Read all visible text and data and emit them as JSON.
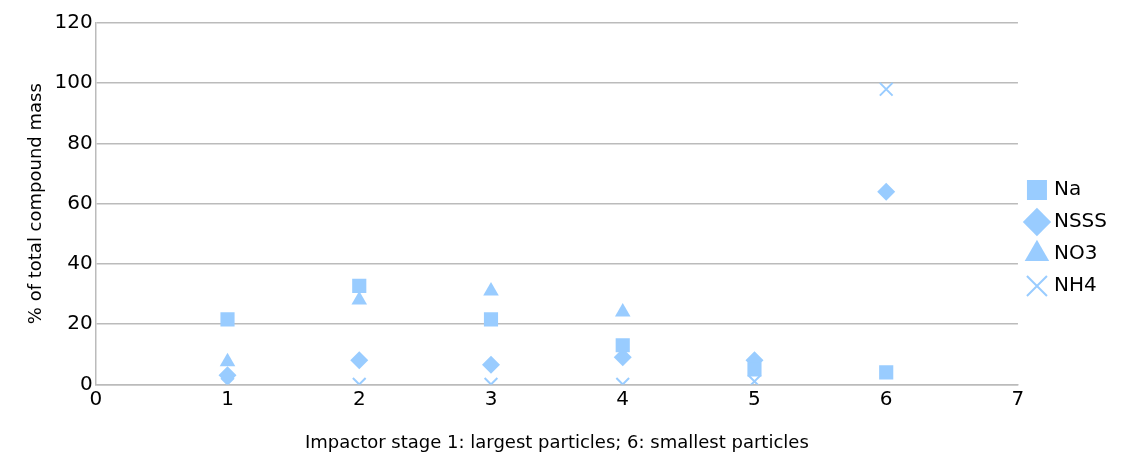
{
  "chart_data": {
    "type": "scatter",
    "xlabel": "Impactor stage 1: largest particles; 6: smallest particles",
    "ylabel": "% of total compound mass",
    "x": [
      1,
      2,
      3,
      4,
      5,
      6
    ],
    "series": [
      {
        "name": "Na",
        "color": "#99ccff",
        "marker": "square",
        "values": [
          21.6,
          32.7,
          21.6,
          13,
          5,
          4
        ]
      },
      {
        "name": "NSSS",
        "color": "#99ccff",
        "marker": "diamond",
        "values": [
          3,
          8,
          6.5,
          9,
          8,
          64
        ]
      },
      {
        "name": "NO3",
        "color": "#99ccff",
        "marker": "triangle",
        "values": [
          7.5,
          28,
          31,
          24,
          null,
          null
        ]
      },
      {
        "name": "NH4",
        "color": "#99ccff",
        "marker": "cross",
        "values": [
          0,
          0,
          0,
          0,
          1,
          98
        ]
      }
    ],
    "xlim": [
      0,
      7
    ],
    "xticks": [
      0,
      1,
      2,
      3,
      4,
      5,
      6,
      7
    ],
    "ylim": [
      0,
      120
    ],
    "yticks": [
      0,
      20,
      40,
      60,
      80,
      100,
      120
    ],
    "grid": "y",
    "legend": "right"
  }
}
